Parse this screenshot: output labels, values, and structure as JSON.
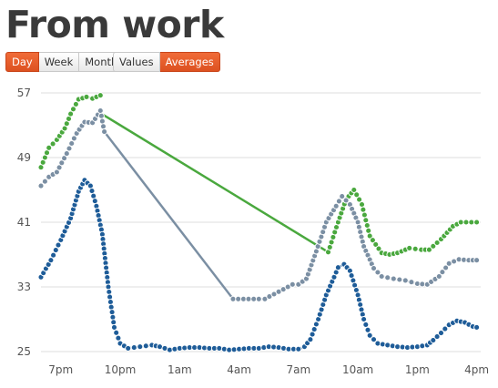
{
  "page": {
    "title": "From work"
  },
  "controls": {
    "range": [
      {
        "label": "Day",
        "active": true
      },
      {
        "label": "Week",
        "active": false
      },
      {
        "label": "Month",
        "active": false
      }
    ],
    "mode": [
      {
        "label": "Values",
        "active": false
      },
      {
        "label": "Averages",
        "active": true
      }
    ]
  },
  "colors": {
    "green": "#4aa83e",
    "gray": "#7b8fa3",
    "blue": "#1e5c98",
    "accent": "#e85a2b",
    "grid": "#dddddd"
  },
  "chart_data": {
    "type": "line",
    "title": "",
    "x_unit": "hours since 6pm",
    "x_ticks": [
      {
        "x": 1,
        "label": "7pm"
      },
      {
        "x": 4,
        "label": "10pm"
      },
      {
        "x": 7,
        "label": "1am"
      },
      {
        "x": 10,
        "label": "4am"
      },
      {
        "x": 13,
        "label": "7am"
      },
      {
        "x": 16,
        "label": "10am"
      },
      {
        "x": 19,
        "label": "1pm"
      },
      {
        "x": 22,
        "label": "4pm"
      }
    ],
    "y_ticks": [
      25,
      33,
      41,
      49,
      57
    ],
    "ylim": [
      25,
      57
    ],
    "xlim": [
      0,
      22.2
    ],
    "grid": true,
    "series": [
      {
        "color": "green",
        "segments": [
          [
            [
              0,
              47.8
            ],
            [
              0.4,
              50.2
            ],
            [
              0.8,
              51.2
            ],
            [
              1.2,
              52.6
            ],
            [
              1.5,
              54.4
            ],
            [
              1.9,
              56.2
            ],
            [
              2.3,
              56.5
            ],
            [
              2.6,
              56.3
            ],
            [
              3.0,
              56.7
            ]
          ],
          [
            [
              3.0,
              54.5
            ],
            [
              14.5,
              37.3
            ],
            [
              15.0,
              41.0
            ],
            [
              15.4,
              43.8
            ],
            [
              15.8,
              45.0
            ],
            [
              16.2,
              43.2
            ],
            [
              16.6,
              39.3
            ],
            [
              17.2,
              37.2
            ],
            [
              17.6,
              37.0
            ],
            [
              18.0,
              37.2
            ],
            [
              18.6,
              37.8
            ],
            [
              19.2,
              37.6
            ],
            [
              19.6,
              37.6
            ],
            [
              20.2,
              38.9
            ],
            [
              20.8,
              40.5
            ],
            [
              21.2,
              41.0
            ],
            [
              22.0,
              41.0
            ]
          ]
        ]
      },
      {
        "color": "gray",
        "segments": [
          [
            [
              0,
              45.5
            ],
            [
              0.4,
              46.6
            ],
            [
              0.8,
              47.2
            ],
            [
              1.3,
              49.5
            ],
            [
              1.8,
              52.0
            ],
            [
              2.2,
              53.4
            ],
            [
              2.6,
              53.3
            ],
            [
              3.0,
              54.8
            ],
            [
              3.1,
              53.5
            ],
            [
              3.2,
              52.2
            ]
          ],
          [
            [
              3.2,
              52.2
            ],
            [
              9.7,
              31.5
            ],
            [
              11.0,
              31.5
            ],
            [
              11.3,
              31.5
            ],
            [
              12.7,
              33.3
            ],
            [
              13.0,
              33.3
            ]
          ],
          [
            [
              13.0,
              33.3
            ],
            [
              13.4,
              34.0
            ],
            [
              13.9,
              37.4
            ],
            [
              14.4,
              41.0
            ],
            [
              14.9,
              43.0
            ],
            [
              15.2,
              44.2
            ],
            [
              15.6,
              43.2
            ],
            [
              16.0,
              41.0
            ],
            [
              16.3,
              38.0
            ],
            [
              16.8,
              35.3
            ],
            [
              17.2,
              34.3
            ],
            [
              17.8,
              34.0
            ],
            [
              18.4,
              33.8
            ],
            [
              19.0,
              33.4
            ],
            [
              19.5,
              33.3
            ],
            [
              20.1,
              34.3
            ],
            [
              20.6,
              35.9
            ],
            [
              21.1,
              36.4
            ],
            [
              21.6,
              36.3
            ],
            [
              22.0,
              36.3
            ]
          ]
        ]
      },
      {
        "color": "blue",
        "segments": [
          [
            [
              0,
              34.2
            ],
            [
              0.5,
              36.3
            ],
            [
              1.0,
              38.8
            ],
            [
              1.5,
              41.5
            ],
            [
              1.9,
              44.8
            ],
            [
              2.2,
              46.2
            ],
            [
              2.5,
              45.5
            ],
            [
              2.8,
              43.0
            ],
            [
              3.1,
              39.5
            ],
            [
              3.4,
              33.0
            ],
            [
              3.7,
              28.0
            ],
            [
              4.0,
              26.0
            ],
            [
              4.4,
              25.4
            ],
            [
              5.0,
              25.6
            ],
            [
              5.6,
              25.8
            ],
            [
              6.0,
              25.6
            ],
            [
              6.5,
              25.2
            ],
            [
              7.0,
              25.4
            ],
            [
              7.5,
              25.5
            ],
            [
              8.0,
              25.5
            ],
            [
              8.5,
              25.4
            ],
            [
              9.0,
              25.4
            ],
            [
              9.5,
              25.2
            ],
            [
              10.0,
              25.3
            ],
            [
              10.5,
              25.4
            ],
            [
              11.0,
              25.4
            ],
            [
              11.5,
              25.6
            ],
            [
              12.0,
              25.5
            ],
            [
              12.5,
              25.3
            ],
            [
              13.0,
              25.3
            ],
            [
              13.3,
              25.6
            ],
            [
              13.6,
              26.5
            ],
            [
              14.0,
              29.0
            ],
            [
              14.4,
              32.0
            ],
            [
              14.8,
              34.2
            ],
            [
              15.0,
              35.4
            ],
            [
              15.3,
              35.8
            ],
            [
              15.6,
              35.0
            ],
            [
              16.0,
              32.0
            ],
            [
              16.3,
              29.0
            ],
            [
              16.6,
              27.0
            ],
            [
              17.0,
              26.0
            ],
            [
              17.5,
              25.8
            ],
            [
              18.0,
              25.6
            ],
            [
              18.5,
              25.5
            ],
            [
              19.0,
              25.6
            ],
            [
              19.5,
              25.8
            ],
            [
              19.8,
              26.4
            ],
            [
              20.2,
              27.3
            ],
            [
              20.6,
              28.3
            ],
            [
              21.0,
              28.8
            ],
            [
              21.4,
              28.6
            ],
            [
              21.8,
              28.1
            ],
            [
              22.0,
              28.0
            ]
          ]
        ]
      }
    ]
  }
}
